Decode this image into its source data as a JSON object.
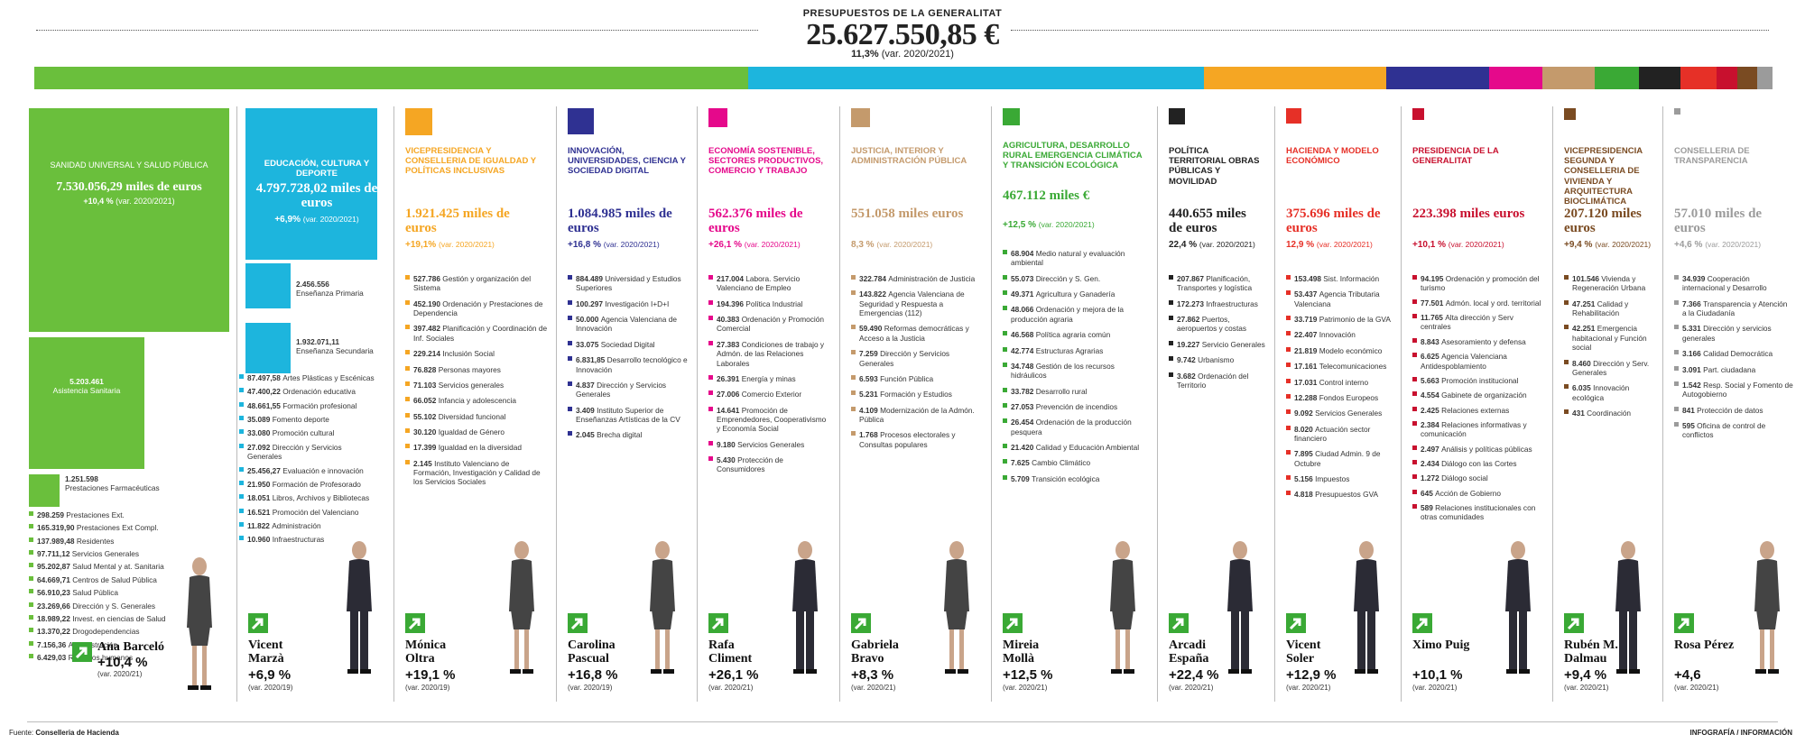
{
  "header": {
    "kicker": "PRESUPUESTOS DE LA GENERALITAT",
    "total": "25.627.550,85 €",
    "var_pct": "11,3%",
    "var_label": "(var. 2020/2021)"
  },
  "colors": {
    "green": "#6abf3c",
    "cyan": "#1db5dd",
    "orange": "#f5a623",
    "navy": "#2f3192",
    "magenta": "#e5098b",
    "tan": "#c49a6c",
    "green2": "#3aa935",
    "black": "#222222",
    "red": "#e63027",
    "crimson": "#c8102e",
    "brown": "#7a4b22",
    "grey": "#9b9b9b"
  },
  "chart_data": {
    "type": "bar",
    "title": "PRESUPUESTOS DE LA GENERALITAT",
    "categories": [
      "Sanidad Universal y Salud Pública",
      "Educación, Cultura y Deporte",
      "Vicepresidencia y Conselleria de Igualdad y Políticas Inclusivas",
      "Innovación, Universidades, Ciencia y Sociedad Digital",
      "Economía Sostenible, Sectores Productivos, Comercio y Trabajo",
      "Justicia, Interior y Administración Pública",
      "Agricultura, Desarrollo Rural, Emergencia Climática y Transición Ecológica",
      "Política Territorial, Obras Públicas y Movilidad",
      "Hacienda y Modelo Económico",
      "Presidencia de la Generalitat",
      "Vicepresidencia Segunda y Conselleria de Vivienda y Arquitectura Bioclimática",
      "Conselleria de Transparencia"
    ],
    "values": [
      7530056.29,
      4797728.02,
      1921425,
      1084985,
      562376,
      551058,
      467112,
      440655,
      375696,
      223398,
      207120,
      57010
    ],
    "ylabel": "miles de euros",
    "var_pct": [
      10.4,
      6.9,
      19.1,
      16.8,
      26.1,
      8.3,
      12.5,
      22.4,
      12.9,
      10.1,
      9.4,
      4.6
    ]
  },
  "strip": [
    {
      "c": "#6abf3c",
      "v": 7530056.29
    },
    {
      "c": "#1db5dd",
      "v": 4797728.02
    },
    {
      "c": "#f5a623",
      "v": 1921425
    },
    {
      "c": "#2f3192",
      "v": 1084985
    },
    {
      "c": "#e5098b",
      "v": 562376
    },
    {
      "c": "#c49a6c",
      "v": 551058
    },
    {
      "c": "#3aa935",
      "v": 467112
    },
    {
      "c": "#222222",
      "v": 440655
    },
    {
      "c": "#e63027",
      "v": 375696
    },
    {
      "c": "#c8102e",
      "v": 223398
    },
    {
      "c": "#7a4b22",
      "v": 207120
    },
    {
      "c": "#9b9b9b",
      "v": 57010
    }
  ],
  "cols": [
    {
      "title": "",
      "amount": "",
      "var": "",
      "var_sub": "",
      "person": "Ana Barceló",
      "pvar": "+10,4 %",
      "pvar_sub": "(var. 2020/21)",
      "items": []
    },
    {
      "title": "EDUCACIÓN, CULTURA Y DEPORTE",
      "amount": "4.797.728,02 miles de euros",
      "var": "+6,9%",
      "var_sub": "(var. 2020/2021)",
      "person": "Vicent Marzà",
      "pvar": "+6,9 %",
      "pvar_sub": "(var. 2020/19)",
      "items": [
        {
          "v": "87.497,58",
          "t": "Artes Plásticas y Escénicas"
        },
        {
          "v": "47.400,22",
          "t": "Ordenación educativa"
        },
        {
          "v": "48.661,55",
          "t": "Formación profesional"
        },
        {
          "v": "35.089",
          "t": "Fomento deporte"
        },
        {
          "v": "33.080",
          "t": "Promoción cultural"
        },
        {
          "v": "27.092",
          "t": "Dirección y Servicios Generales"
        },
        {
          "v": "25.456,27",
          "t": "Evaluación e innovación"
        },
        {
          "v": "21.950",
          "t": "Formación de Profesorado"
        },
        {
          "v": "18.051",
          "t": "Libros, Archivos y Bibliotecas"
        },
        {
          "v": "16.521",
          "t": "Promoción del Valenciano"
        },
        {
          "v": "11.822",
          "t": "Administración"
        },
        {
          "v": "10.960",
          "t": "Infraestructuras"
        }
      ]
    },
    {
      "title": "VICEPRESIDENCIA Y CONSELLERIA DE IGUALDAD Y POLÍTICAS INCLUSIVAS",
      "amount": "1.921.425 miles de euros",
      "var": "+19,1%",
      "var_sub": "(var. 2020/2021)",
      "person": "Mónica Oltra",
      "pvar": "+19,1 %",
      "pvar_sub": "(var. 2020/19)",
      "items": [
        {
          "v": "527.786",
          "t": "Gestión y organización del Sistema"
        },
        {
          "v": "452.190",
          "t": "Ordenación y Prestaciones de Dependencia"
        },
        {
          "v": "397.482",
          "t": "Planificación y Coordinación de Inf. Sociales"
        },
        {
          "v": "229.214",
          "t": "Inclusión Social"
        },
        {
          "v": "76.828",
          "t": "Personas mayores"
        },
        {
          "v": "71.103",
          "t": "Servicios generales"
        },
        {
          "v": "66.052",
          "t": "Infancia y adolescencia"
        },
        {
          "v": "55.102",
          "t": "Diversidad funcional"
        },
        {
          "v": "30.120",
          "t": "Igualdad de Género"
        },
        {
          "v": "17.399",
          "t": "Igualdad en la diversidad"
        },
        {
          "v": "2.145",
          "t": "Instituto Valenciano de Formación, Investigación y Calidad de los Servicios Sociales"
        }
      ]
    },
    {
      "title": "INNOVACIÓN, UNIVERSIDADES, CIENCIA Y SOCIEDAD DIGITAL",
      "amount": "1.084.985 miles de euros",
      "var": "+16,8 %",
      "var_sub": "(var. 2020/2021)",
      "person": "Carolina Pascual",
      "pvar": "+16,8 %",
      "pvar_sub": "(var. 2020/19)",
      "items": [
        {
          "v": "884.489",
          "t": "Universidad y Estudios Superiores"
        },
        {
          "v": "100.297",
          "t": "Investigación I+D+I"
        },
        {
          "v": "50.000",
          "t": "Agencia Valenciana de Innovación"
        },
        {
          "v": "33.075",
          "t": "Sociedad Digital"
        },
        {
          "v": "6.831,85",
          "t": "Desarrollo tecnológico e Innovación"
        },
        {
          "v": "4.837",
          "t": "Dirección y Servicios Generales"
        },
        {
          "v": "3.409",
          "t": "Instituto Superior de Enseñanzas Artísticas de la CV"
        },
        {
          "v": "2.045",
          "t": "Brecha digital"
        }
      ]
    },
    {
      "title": "ECONOMÍA SOSTENIBLE, SECTORES PRODUCTIVOS, COMERCIO Y TRABAJO",
      "amount": "562.376 miles de euros",
      "var": "+26,1 %",
      "var_sub": "(var. 2020/2021)",
      "person": "Rafa Climent",
      "pvar": "+26,1 %",
      "pvar_sub": "(var. 2020/21)",
      "items": [
        {
          "v": "217.004",
          "t": "Labora. Servicio Valenciano de Empleo"
        },
        {
          "v": "194.396",
          "t": "Política Industrial"
        },
        {
          "v": "40.383",
          "t": "Ordenación y Promoción Comercial"
        },
        {
          "v": "27.383",
          "t": "Condiciones de trabajo y Admón. de las Relaciones Laborales"
        },
        {
          "v": "26.391",
          "t": "Energía y minas"
        },
        {
          "v": "27.006",
          "t": "Comercio Exterior"
        },
        {
          "v": "14.641",
          "t": "Promoción de Emprendedores, Cooperativismo y Economía Social"
        },
        {
          "v": "9.180",
          "t": "Servicios Generales"
        },
        {
          "v": "5.430",
          "t": "Protección de Consumidores"
        }
      ]
    },
    {
      "title": "JUSTICIA, INTERIOR Y ADMINISTRACIÓN PÚBLICA",
      "amount": "551.058 miles euros",
      "var": "8,3 %",
      "var_sub": "(var. 2020/2021)",
      "person": "Gabriela Bravo",
      "pvar": "+8,3 %",
      "pvar_sub": "(var. 2020/21)",
      "items": [
        {
          "v": "322.784",
          "t": "Administración de Justicia"
        },
        {
          "v": "143.822",
          "t": "Agencia Valenciana de Seguridad y Respuesta a Emergencias (112)"
        },
        {
          "v": "59.490",
          "t": "Reformas democráticas y Acceso a la Justicia"
        },
        {
          "v": "7.259",
          "t": "Dirección y Servicios Generales"
        },
        {
          "v": "6.593",
          "t": "Función Pública"
        },
        {
          "v": "5.231",
          "t": "Formación y Estudios"
        },
        {
          "v": "4.109",
          "t": "Modernización de la Admón. Pública"
        },
        {
          "v": "1.768",
          "t": "Procesos electorales y Consultas populares"
        }
      ]
    },
    {
      "title": "AGRICULTURA, DESARROLLO RURAL EMERGENCIA CLIMÁTICA Y TRANSICIÓN ECOLÓGICA",
      "amount": "467.112 miles €",
      "var": "+12,5 %",
      "var_sub": "(var. 2020/2021)",
      "person": "Mireia Mollà",
      "pvar": "+12,5 %",
      "pvar_sub": "(var. 2020/21)",
      "items": [
        {
          "v": "68.904",
          "t": "Medio natural y evaluación ambiental"
        },
        {
          "v": "55.073",
          "t": "Dirección y S. Gen."
        },
        {
          "v": "49.371",
          "t": "Agricultura y Ganadería"
        },
        {
          "v": "48.066",
          "t": "Ordenación y mejora de la producción agraria"
        },
        {
          "v": "46.568",
          "t": "Política agraria común"
        },
        {
          "v": "42.774",
          "t": "Estructuras Agrarias"
        },
        {
          "v": "34.748",
          "t": "Gestión de los recursos hidráulicos"
        },
        {
          "v": "33.782",
          "t": "Desarrollo rural"
        },
        {
          "v": "27.053",
          "t": "Prevención de incendios"
        },
        {
          "v": "26.454",
          "t": "Ordenación de la producción pesquera"
        },
        {
          "v": "21.420",
          "t": "Calidad y Educación Ambiental"
        },
        {
          "v": "7.625",
          "t": "Cambio Climático"
        },
        {
          "v": "5.709",
          "t": "Transición ecológica"
        }
      ]
    },
    {
      "title": "POLÍTICA TERRITORIAL OBRAS PÚBLICAS Y MOVILIDAD",
      "amount": "440.655 miles de euros",
      "var": "22,4 %",
      "var_sub": "(var. 2020/2021)",
      "person": "Arcadi España",
      "pvar": "+22,4 %",
      "pvar_sub": "(var. 2020/21)",
      "items": [
        {
          "v": "207.867",
          "t": "Planificación, Transportes y logística"
        },
        {
          "v": "172.273",
          "t": "Infraestructuras"
        },
        {
          "v": "27.862",
          "t": "Puertos, aeropuertos y costas"
        },
        {
          "v": "19.227",
          "t": "Servicio Generales"
        },
        {
          "v": "9.742",
          "t": "Urbanismo"
        },
        {
          "v": "3.682",
          "t": "Ordenación del Territorio"
        }
      ]
    },
    {
      "title": "HACIENDA Y MODELO ECONÓMICO",
      "amount": "375.696 miles de euros",
      "var": "12,9 %",
      "var_sub": "(var. 2020/2021)",
      "person": "Vicent Soler",
      "pvar": "+12,9 %",
      "pvar_sub": "(var. 2020/21)",
      "items": [
        {
          "v": "153.498",
          "t": "Sist. Información"
        },
        {
          "v": "53.437",
          "t": "Agencia Tributaria Valenciana"
        },
        {
          "v": "33.719",
          "t": "Patrimonio de la GVA"
        },
        {
          "v": "22.407",
          "t": "Innovación"
        },
        {
          "v": "21.819",
          "t": "Modelo económico"
        },
        {
          "v": "17.161",
          "t": "Telecomunicaciones"
        },
        {
          "v": "17.031",
          "t": "Control interno"
        },
        {
          "v": "12.288",
          "t": "Fondos Europeos"
        },
        {
          "v": "9.092",
          "t": "Servicios Generales"
        },
        {
          "v": "8.020",
          "t": "Actuación sector financiero"
        },
        {
          "v": "7.895",
          "t": "Ciudad Admin. 9 de Octubre"
        },
        {
          "v": "5.156",
          "t": "Impuestos"
        },
        {
          "v": "4.818",
          "t": "Presupuestos GVA"
        }
      ]
    },
    {
      "title": "PRESIDENCIA DE LA GENERALITAT",
      "amount": "223.398 miles euros",
      "var": "+10,1 %",
      "var_sub": "(var. 2020/2021)",
      "person": "Ximo Puig",
      "pvar": "+10,1 %",
      "pvar_sub": "(var. 2020/21)",
      "items": [
        {
          "v": "94.195",
          "t": "Ordenación y promoción del turismo"
        },
        {
          "v": "77.501",
          "t": "Admón. local y ord. territorial"
        },
        {
          "v": "11.765",
          "t": "Alta dirección y Serv centrales"
        },
        {
          "v": "8.843",
          "t": "Asesoramiento y defensa"
        },
        {
          "v": "6.625",
          "t": "Agencia Valenciana Antidespoblamiento"
        },
        {
          "v": "5.663",
          "t": "Promoción institucional"
        },
        {
          "v": "4.554",
          "t": "Gabinete de organización"
        },
        {
          "v": "2.425",
          "t": "Relaciones externas"
        },
        {
          "v": "2.384",
          "t": "Relaciones informativas y comunicación"
        },
        {
          "v": "2.497",
          "t": "Análisis y políticas públicas"
        },
        {
          "v": "2.434",
          "t": "Diálogo con las Cortes"
        },
        {
          "v": "1.272",
          "t": "Diálogo social"
        },
        {
          "v": "645",
          "t": "Acción de Gobierno"
        },
        {
          "v": "589",
          "t": "Relaciones institucionales con otras comunidades"
        }
      ]
    },
    {
      "title": "VICEPRESIDENCIA SEGUNDA Y CONSELLERIA DE VIVIENDA Y ARQUITECTURA BIOCLIMÁTICA",
      "amount": "207.120 miles euros",
      "var": "+9,4 %",
      "var_sub": "(var. 2020/2021)",
      "person": "Rubén M. Dalmau",
      "pvar": "+9,4 %",
      "pvar_sub": "(var. 2020/21)",
      "items": [
        {
          "v": "101.546",
          "t": "Vivienda y Regeneración Urbana"
        },
        {
          "v": "47.251",
          "t": "Calidad y Rehabilitación"
        },
        {
          "v": "42.251",
          "t": "Emergencia habitacional y Función social"
        },
        {
          "v": "8.460",
          "t": "Dirección y Serv. Generales"
        },
        {
          "v": "6.035",
          "t": "Innovación ecológica"
        },
        {
          "v": "431",
          "t": "Coordinación"
        }
      ]
    },
    {
      "title": "CONSELLERIA DE TRANSPARENCIA",
      "amount": "57.010 miles de euros",
      "var": "+4,6 %",
      "var_sub": "(var. 2020/2021)",
      "person": "Rosa Pérez",
      "pvar": "+4,6",
      "pvar_sub": "(var. 2020/21)",
      "items": [
        {
          "v": "34.939",
          "t": "Cooperación internacional y Desarrollo"
        },
        {
          "v": "7.366",
          "t": "Transparencia y Atención a la Ciudadanía"
        },
        {
          "v": "5.331",
          "t": "Dirección y servicios generales"
        },
        {
          "v": "3.166",
          "t": "Calidad Democrática"
        },
        {
          "v": "3.091",
          "t": "Part. ciudadana"
        },
        {
          "v": "1.542",
          "t": "Resp. Social y Fomento de Autogobierno"
        },
        {
          "v": "841",
          "t": "Protección de datos"
        },
        {
          "v": "595",
          "t": "Oficina de control de conflictos"
        }
      ]
    }
  ],
  "sanidad": {
    "title": "SANIDAD UNIVERSAL Y SALUD PÚBLICA",
    "amount": "7.530.056,29 miles de euros",
    "var": "+10,4 %",
    "var_sub": "(var. 2020/2021)",
    "box2_v": "5.203.461",
    "box2_t": "Asistencia Sanitaria",
    "box3_v": "1.251.598",
    "box3_t": "Prestaciones Farmacéuticas",
    "items": [
      {
        "v": "298.259",
        "t": "Prestaciones Ext."
      },
      {
        "v": "165.319,90",
        "t": "Prestaciones Ext Compl."
      },
      {
        "v": "137.989,48",
        "t": "Residentes"
      },
      {
        "v": "97.711,12",
        "t": "Servicios Generales"
      },
      {
        "v": "95.202,87",
        "t": "Salud Mental y at. Sanitaria"
      },
      {
        "v": "64.669,71",
        "t": "Centros de Salud Pública"
      },
      {
        "v": "56.910,23",
        "t": "Salud Pública"
      },
      {
        "v": "23.269,66",
        "t": "Dirección y S. Generales"
      },
      {
        "v": "18.989,22",
        "t": "Invest. en ciencias de Salud"
      },
      {
        "v": "13.370,22",
        "t": "Drogodependencias"
      },
      {
        "v": "7.156,36",
        "t": "Administración"
      },
      {
        "v": "6.429,03",
        "t": "Recursos humanos"
      }
    ]
  },
  "educacion": {
    "box2_v": "2.456.556",
    "box2_t": "Enseñanza Primaria",
    "box3_v": "1.932.071,11",
    "box3_t": "Enseñanza Secundaria"
  },
  "footer": {
    "source_label": "Fuente:",
    "source": "Conselleria de Hacienda",
    "credit": "INFOGRAFÍA / INFORMACIÓN"
  }
}
